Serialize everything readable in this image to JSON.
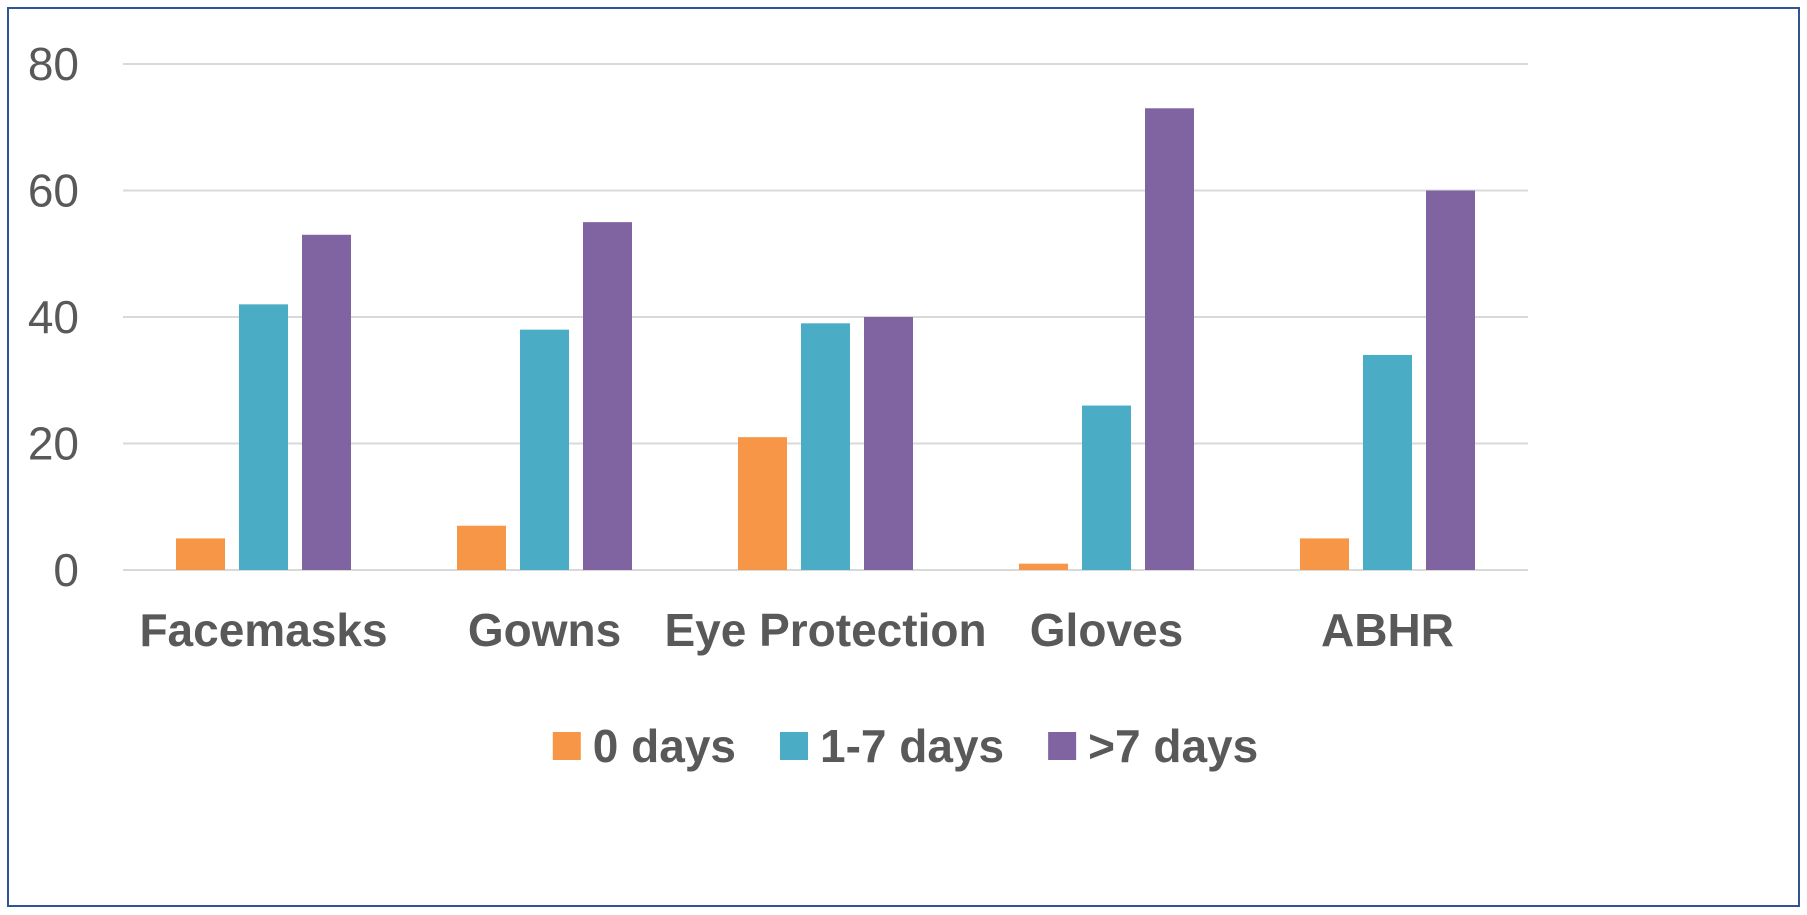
{
  "chart_data": {
    "type": "bar",
    "categories": [
      "Facemasks",
      "Gowns",
      "Eye Protection",
      "Gloves",
      "ABHR"
    ],
    "series": [
      {
        "name": "0 days",
        "color": "#f79646",
        "values": [
          5,
          7,
          21,
          1,
          5
        ]
      },
      {
        "name": "1-7 days",
        "color": "#4bacc6",
        "values": [
          42,
          38,
          39,
          26,
          34
        ]
      },
      {
        "name": ">7 days",
        "color": "#8064a2",
        "values": [
          53,
          55,
          40,
          73,
          60
        ]
      }
    ],
    "title": "",
    "xlabel": "",
    "ylabel": "",
    "ylim": [
      0,
      80
    ],
    "yticks": [
      0,
      20,
      40,
      60,
      80
    ],
    "grid": true,
    "legend_position": "bottom"
  }
}
